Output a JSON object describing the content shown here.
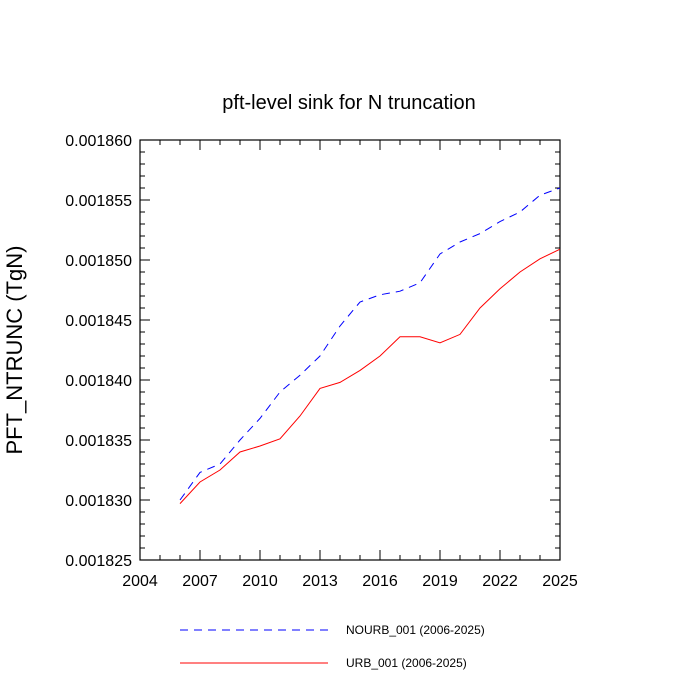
{
  "chart_data": {
    "type": "line",
    "title": "pft-level sink for N truncation",
    "xlabel": "",
    "ylabel": "PFT_NTRUNC  (TgN)",
    "xlim": [
      2004,
      2025
    ],
    "ylim": [
      0.001825,
      0.00186
    ],
    "x_ticks": [
      "2004",
      "2007",
      "2010",
      "2013",
      "2016",
      "2019",
      "2022",
      "2025"
    ],
    "y_ticks": [
      "0.001825",
      "0.001830",
      "0.001835",
      "0.001840",
      "0.001845",
      "0.001850",
      "0.001855",
      "0.001860"
    ],
    "x": [
      2006,
      2007,
      2008,
      2009,
      2010,
      2011,
      2012,
      2013,
      2014,
      2015,
      2016,
      2017,
      2018,
      2019,
      2020,
      2021,
      2022,
      2023,
      2024,
      2025
    ],
    "series": [
      {
        "name": "NOURB_001 (2006-2025)",
        "color": "#0000ff",
        "dash": "dashed",
        "values": [
          0.00183,
          0.0018323,
          0.001833,
          0.001835,
          0.0018368,
          0.001839,
          0.0018404,
          0.001842,
          0.0018445,
          0.0018465,
          0.0018471,
          0.0018474,
          0.0018481,
          0.0018505,
          0.0018515,
          0.0018522,
          0.0018532,
          0.001854,
          0.0018554,
          0.001856
        ]
      },
      {
        "name": "URB_001 (2006-2025)",
        "color": "#ff0000",
        "dash": "solid",
        "values": [
          0.0018297,
          0.0018315,
          0.0018325,
          0.001834,
          0.0018345,
          0.0018351,
          0.001837,
          0.0018393,
          0.0018398,
          0.0018408,
          0.001842,
          0.0018436,
          0.0018436,
          0.0018431,
          0.0018438,
          0.001846,
          0.0018476,
          0.001849,
          0.0018501,
          0.0018509
        ]
      }
    ],
    "grid": false,
    "legend_position": "bottom"
  }
}
